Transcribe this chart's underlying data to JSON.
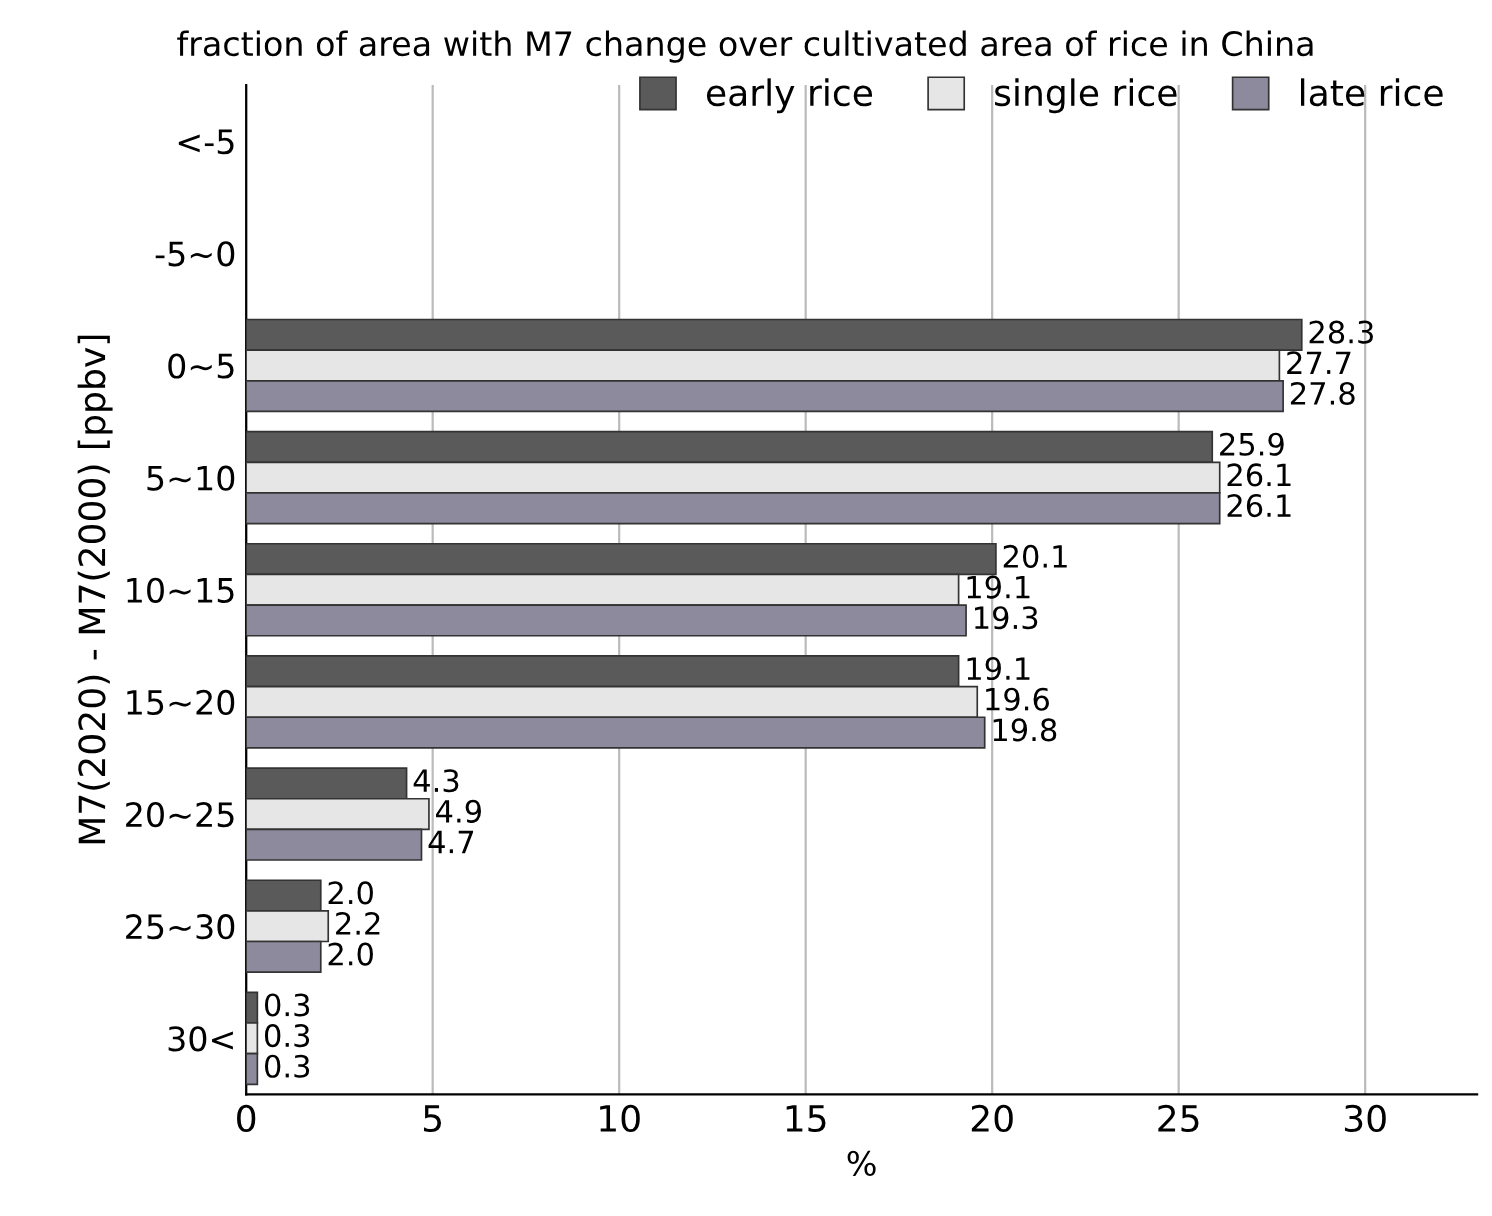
{
  "chart_data": {
    "type": "bar",
    "orientation": "horizontal",
    "title": "fraction of area with M7 change over cultivated area of rice in China",
    "xlabel": "%",
    "ylabel": "M7(2020) - M7(2000) [ppbv]",
    "categories": [
      "<-5",
      "-5~0",
      "0~5",
      "5~10",
      "10~15",
      "15~20",
      "20~25",
      "25~30",
      "30<"
    ],
    "series": [
      {
        "name": "early rice",
        "color": "#5a5a5a",
        "values": [
          null,
          null,
          28.3,
          25.9,
          20.1,
          19.1,
          4.3,
          2.0,
          0.3
        ],
        "value_labels": [
          null,
          null,
          "28.3",
          "25.9",
          "20.1",
          "19.1",
          "4.3",
          "2.0",
          "0.3"
        ]
      },
      {
        "name": "single rice",
        "color": "#e6e6e6",
        "values": [
          null,
          null,
          27.7,
          26.1,
          19.1,
          19.6,
          4.9,
          2.2,
          0.3
        ],
        "value_labels": [
          null,
          null,
          "27.7",
          "26.1",
          "19.1",
          "19.6",
          "4.9",
          "2.2",
          "0.3"
        ]
      },
      {
        "name": "late rice",
        "color": "#8c8a9c",
        "values": [
          null,
          null,
          27.8,
          26.1,
          19.3,
          19.8,
          4.7,
          2.0,
          0.3
        ],
        "value_labels": [
          null,
          null,
          "27.8",
          "26.1",
          "19.3",
          "19.8",
          "4.7",
          "2.0",
          "0.3"
        ]
      }
    ],
    "xlim": [
      0,
      33
    ],
    "xticks": [
      0,
      5,
      10,
      15,
      20,
      25,
      30
    ],
    "grid": "x",
    "legend": "top right"
  }
}
